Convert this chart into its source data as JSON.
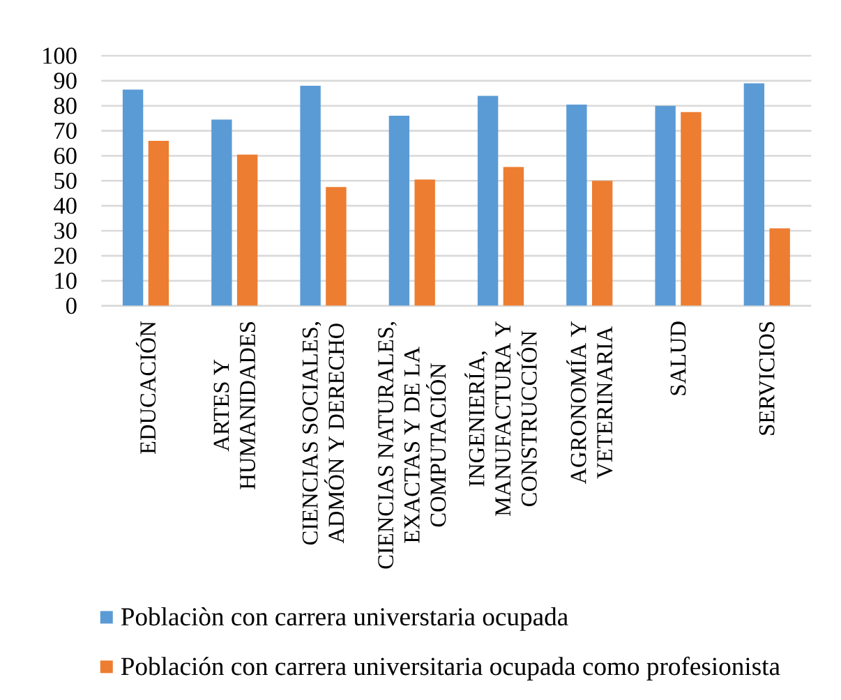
{
  "chart_data": {
    "type": "bar",
    "categories": [
      "EDUCACIÓN",
      "ARTES Y HUMANIDADES",
      "CIENCIAS SOCIALES, ADMÓN Y DERECHO",
      "CIENCIAS NATURALES, EXACTAS Y DE LA COMPUTACIÓN",
      "INGENIERÍA, MANUFACTURA Y CONSTRUCCIÓN",
      "AGRONOMÍA Y VETERINARIA",
      "SALUD",
      "SERVICIOS"
    ],
    "series": [
      {
        "name": "Poblaciòn con carrera universtaria ocupada",
        "color": "#5b9bd5",
        "values": [
          86.5,
          74.5,
          88,
          76,
          84,
          80.5,
          80,
          89
        ]
      },
      {
        "name": "Población con carrera universitaria ocupada como profesionista",
        "color": "#ed7d31",
        "values": [
          66,
          60.5,
          47.5,
          50.5,
          55.5,
          50,
          77.5,
          31
        ]
      }
    ],
    "ylim": [
      0,
      100
    ],
    "yticks": [
      0,
      10,
      20,
      30,
      40,
      50,
      60,
      70,
      80,
      90,
      100
    ],
    "grid": "y",
    "legend": "bottom"
  }
}
